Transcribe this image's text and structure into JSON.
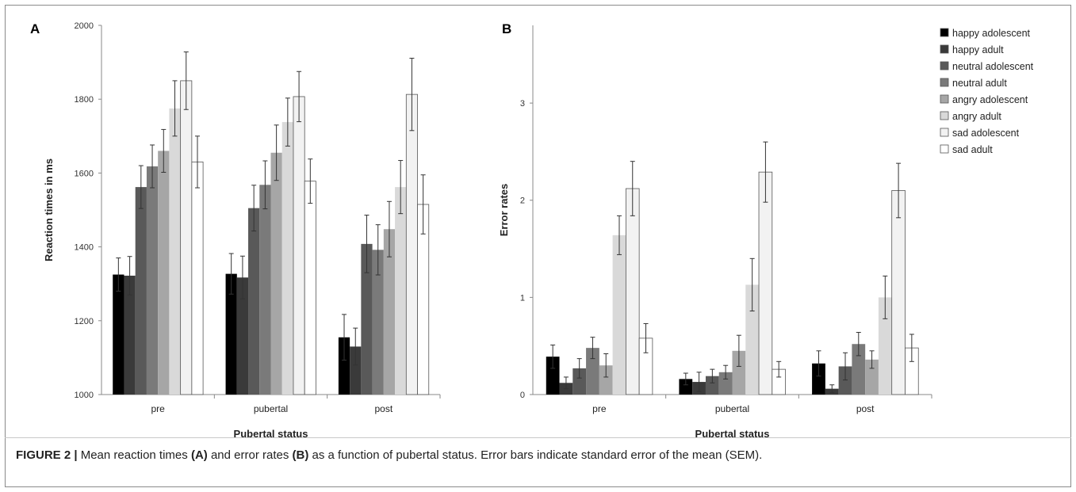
{
  "figure": {
    "caption_label": "FIGURE 2 |",
    "caption_parts": [
      {
        "text": " Mean reaction times ",
        "bold": false
      },
      {
        "text": "(A)",
        "bold": true
      },
      {
        "text": " and error rates ",
        "bold": false
      },
      {
        "text": "(B)",
        "bold": true
      },
      {
        "text": " as a function of pubertal status. Error bars indicate standard error of the mean (SEM).",
        "bold": false
      }
    ]
  },
  "legend": {
    "items": [
      {
        "label": "happy adolescent",
        "color": "#000000"
      },
      {
        "label": "happy adult",
        "color": "#3a3a3a"
      },
      {
        "label": "neutral adolescent",
        "color": "#595959"
      },
      {
        "label": "neutral adult",
        "color": "#7a7a7a"
      },
      {
        "label": "angry adolescent",
        "color": "#a6a6a6"
      },
      {
        "label": "angry adult",
        "color": "#d9d9d9"
      },
      {
        "label": "sad adolescent",
        "color": "#f2f2f2"
      },
      {
        "label": "sad adult",
        "color": "#ffffff"
      }
    ]
  },
  "chart_data": [
    {
      "panel": "A",
      "type": "bar",
      "xlabel": "Pubertal status",
      "ylabel": "Reaction times in ms",
      "ylim": [
        1000,
        2000
      ],
      "yticks": [
        1000,
        1200,
        1400,
        1600,
        1800,
        2000
      ],
      "categories": [
        "pre",
        "pubertal",
        "post"
      ],
      "series": [
        {
          "name": "happy adolescent",
          "values": [
            1325,
            1327,
            1155
          ],
          "errors": [
            45,
            55,
            62
          ]
        },
        {
          "name": "happy adult",
          "values": [
            1322,
            1317,
            1130
          ],
          "errors": [
            52,
            58,
            50
          ]
        },
        {
          "name": "neutral adolescent",
          "values": [
            1562,
            1505,
            1408
          ],
          "errors": [
            58,
            62,
            78
          ]
        },
        {
          "name": "neutral adult",
          "values": [
            1618,
            1568,
            1392
          ],
          "errors": [
            58,
            65,
            68
          ]
        },
        {
          "name": "angry adolescent",
          "values": [
            1660,
            1655,
            1448
          ],
          "errors": [
            58,
            75,
            75
          ]
        },
        {
          "name": "angry adult",
          "values": [
            1775,
            1738,
            1562
          ],
          "errors": [
            75,
            65,
            72
          ]
        },
        {
          "name": "sad adolescent",
          "values": [
            1850,
            1807,
            1813
          ],
          "errors": [
            78,
            68,
            98
          ]
        },
        {
          "name": "sad adult",
          "values": [
            1630,
            1578,
            1515
          ],
          "errors": [
            70,
            60,
            80
          ]
        }
      ]
    },
    {
      "panel": "B",
      "type": "bar",
      "xlabel": "Pubertal status",
      "ylabel": "Error rates",
      "ylim": [
        0,
        3.8
      ],
      "yticks": [
        0,
        1,
        2,
        3
      ],
      "categories": [
        "pre",
        "pubertal",
        "post"
      ],
      "series": [
        {
          "name": "happy adolescent",
          "values": [
            0.39,
            0.16,
            0.32
          ],
          "errors": [
            0.12,
            0.06,
            0.13
          ]
        },
        {
          "name": "happy adult",
          "values": [
            0.12,
            0.13,
            0.06
          ],
          "errors": [
            0.06,
            0.1,
            0.04
          ]
        },
        {
          "name": "neutral adolescent",
          "values": [
            0.27,
            0.19,
            0.29
          ],
          "errors": [
            0.1,
            0.07,
            0.14
          ]
        },
        {
          "name": "neutral adult",
          "values": [
            0.48,
            0.23,
            0.52
          ],
          "errors": [
            0.11,
            0.07,
            0.12
          ]
        },
        {
          "name": "angry adolescent",
          "values": [
            0.3,
            0.45,
            0.36
          ],
          "errors": [
            0.12,
            0.16,
            0.09
          ]
        },
        {
          "name": "angry adult",
          "values": [
            1.64,
            1.13,
            1.0
          ],
          "errors": [
            0.2,
            0.27,
            0.22
          ]
        },
        {
          "name": "sad adolescent",
          "values": [
            2.12,
            2.29,
            2.1
          ],
          "errors": [
            0.28,
            0.31,
            0.28
          ]
        },
        {
          "name": "sad adult",
          "values": [
            0.58,
            0.26,
            0.48
          ],
          "errors": [
            0.15,
            0.08,
            0.14
          ]
        }
      ]
    }
  ]
}
